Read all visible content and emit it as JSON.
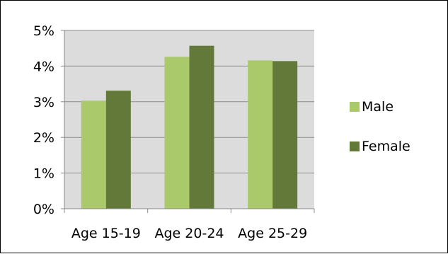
{
  "chart_data": {
    "type": "bar",
    "categories": [
      "Age 15-19",
      "Age 20-24",
      "Age 25-29"
    ],
    "series": [
      {
        "name": "Male",
        "values": [
          3.03,
          4.26,
          4.16
        ]
      },
      {
        "name": "Female",
        "values": [
          3.31,
          4.57,
          4.14
        ]
      }
    ],
    "ylim": [
      0,
      5
    ],
    "yticks": [
      "0%",
      "1%",
      "2%",
      "3%",
      "4%",
      "5%"
    ],
    "ytick_values": [
      0,
      1,
      2,
      3,
      4,
      5
    ],
    "grid": true,
    "legend": "right",
    "colors": {
      "Male": "#a9c96a",
      "Female": "#62793a",
      "plot_background": "#dcdcdc",
      "gridline": "#8c8c8c",
      "axis": "#888888"
    }
  }
}
